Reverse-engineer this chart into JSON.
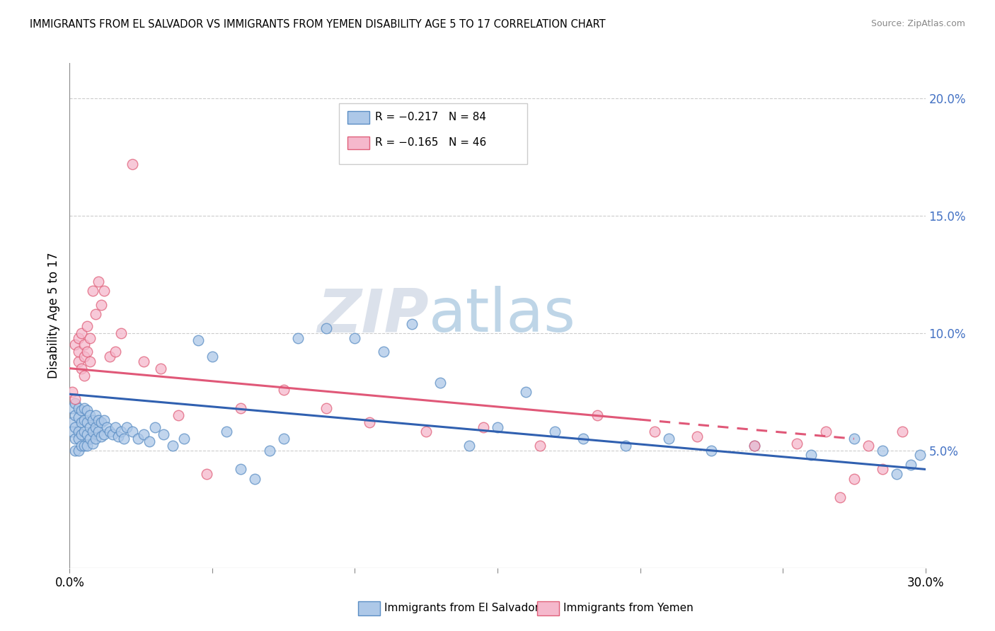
{
  "title": "IMMIGRANTS FROM EL SALVADOR VS IMMIGRANTS FROM YEMEN DISABILITY AGE 5 TO 17 CORRELATION CHART",
  "source": "Source: ZipAtlas.com",
  "ylabel": "Disability Age 5 to 17",
  "xlim": [
    0.0,
    0.3
  ],
  "ylim": [
    0.0,
    0.215
  ],
  "xticks": [
    0.0,
    0.05,
    0.1,
    0.15,
    0.2,
    0.25,
    0.3
  ],
  "yticks_right": [
    0.05,
    0.1,
    0.15,
    0.2
  ],
  "ytick_right_labels": [
    "5.0%",
    "10.0%",
    "15.0%",
    "20.0%"
  ],
  "legend_blue_r": "R = −0.217",
  "legend_blue_n": "N = 84",
  "legend_pink_r": "R = −0.165",
  "legend_pink_n": "N = 46",
  "blue_scatter_color": "#adc8e8",
  "blue_edge_color": "#5b8ec4",
  "pink_scatter_color": "#f5b8cc",
  "pink_edge_color": "#e0607a",
  "blue_line_color": "#3060b0",
  "pink_line_color": "#e05878",
  "blue_label": "Immigrants from El Salvador",
  "pink_label": "Immigrants from Yemen",
  "watermark_zip_color": "#d0d8e8",
  "watermark_atlas_color": "#a8c4e0",
  "grid_color": "#cccccc",
  "background_color": "#ffffff",
  "blue_trendline_x": [
    0.0,
    0.3
  ],
  "blue_trendline_y": [
    0.074,
    0.042
  ],
  "pink_trendline_x": [
    0.0,
    0.275
  ],
  "pink_trendline_y": [
    0.085,
    0.055
  ],
  "blue_scatter_x": [
    0.001,
    0.001,
    0.001,
    0.002,
    0.002,
    0.002,
    0.002,
    0.002,
    0.003,
    0.003,
    0.003,
    0.003,
    0.003,
    0.004,
    0.004,
    0.004,
    0.004,
    0.005,
    0.005,
    0.005,
    0.005,
    0.006,
    0.006,
    0.006,
    0.006,
    0.007,
    0.007,
    0.007,
    0.008,
    0.008,
    0.008,
    0.009,
    0.009,
    0.009,
    0.01,
    0.01,
    0.011,
    0.011,
    0.012,
    0.012,
    0.013,
    0.014,
    0.015,
    0.016,
    0.017,
    0.018,
    0.019,
    0.02,
    0.022,
    0.024,
    0.026,
    0.028,
    0.03,
    0.033,
    0.036,
    0.04,
    0.045,
    0.05,
    0.055,
    0.06,
    0.065,
    0.07,
    0.075,
    0.08,
    0.09,
    0.1,
    0.11,
    0.12,
    0.13,
    0.14,
    0.15,
    0.16,
    0.17,
    0.18,
    0.195,
    0.21,
    0.225,
    0.24,
    0.26,
    0.275,
    0.285,
    0.29,
    0.295,
    0.298
  ],
  "blue_scatter_y": [
    0.068,
    0.062,
    0.058,
    0.07,
    0.065,
    0.06,
    0.055,
    0.05,
    0.068,
    0.064,
    0.058,
    0.055,
    0.05,
    0.067,
    0.062,
    0.057,
    0.052,
    0.068,
    0.063,
    0.058,
    0.052,
    0.067,
    0.062,
    0.057,
    0.052,
    0.065,
    0.06,
    0.055,
    0.063,
    0.058,
    0.053,
    0.065,
    0.06,
    0.055,
    0.063,
    0.058,
    0.062,
    0.056,
    0.063,
    0.057,
    0.06,
    0.058,
    0.057,
    0.06,
    0.056,
    0.058,
    0.055,
    0.06,
    0.058,
    0.055,
    0.057,
    0.054,
    0.06,
    0.057,
    0.052,
    0.055,
    0.097,
    0.09,
    0.058,
    0.042,
    0.038,
    0.05,
    0.055,
    0.098,
    0.102,
    0.098,
    0.092,
    0.104,
    0.079,
    0.052,
    0.06,
    0.075,
    0.058,
    0.055,
    0.052,
    0.055,
    0.05,
    0.052,
    0.048,
    0.055,
    0.05,
    0.04,
    0.044,
    0.048
  ],
  "pink_scatter_x": [
    0.001,
    0.002,
    0.002,
    0.003,
    0.003,
    0.003,
    0.004,
    0.004,
    0.005,
    0.005,
    0.005,
    0.006,
    0.006,
    0.007,
    0.007,
    0.008,
    0.009,
    0.01,
    0.011,
    0.012,
    0.014,
    0.016,
    0.018,
    0.022,
    0.026,
    0.032,
    0.038,
    0.048,
    0.06,
    0.075,
    0.09,
    0.105,
    0.125,
    0.145,
    0.165,
    0.185,
    0.205,
    0.22,
    0.24,
    0.255,
    0.265,
    0.27,
    0.275,
    0.28,
    0.285,
    0.292
  ],
  "pink_scatter_y": [
    0.075,
    0.072,
    0.095,
    0.088,
    0.092,
    0.098,
    0.085,
    0.1,
    0.082,
    0.09,
    0.095,
    0.103,
    0.092,
    0.098,
    0.088,
    0.118,
    0.108,
    0.122,
    0.112,
    0.118,
    0.09,
    0.092,
    0.1,
    0.172,
    0.088,
    0.085,
    0.065,
    0.04,
    0.068,
    0.076,
    0.068,
    0.062,
    0.058,
    0.06,
    0.052,
    0.065,
    0.058,
    0.056,
    0.052,
    0.053,
    0.058,
    0.03,
    0.038,
    0.052,
    0.042,
    0.058
  ]
}
